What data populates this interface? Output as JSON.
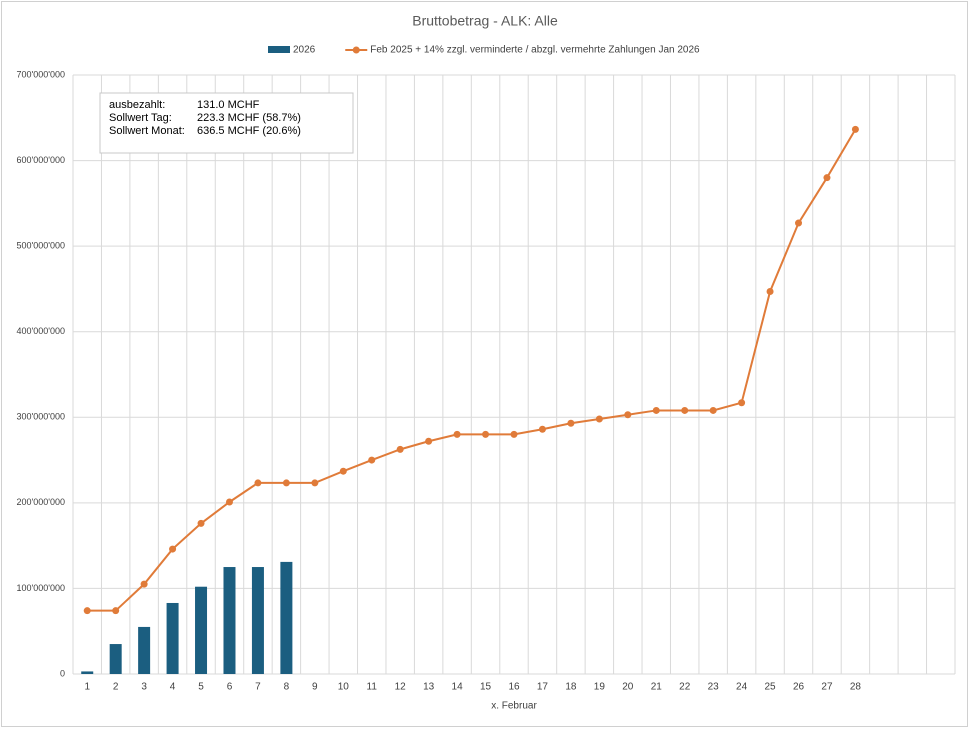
{
  "chart_data": {
    "type": "bar_line",
    "title": "Bruttobetrag - ALK: Alle",
    "x_label": "x. Februar",
    "categories": [
      "1",
      "2",
      "3",
      "4",
      "5",
      "6",
      "7",
      "8",
      "9",
      "10",
      "11",
      "12",
      "13",
      "14",
      "15",
      "16",
      "17",
      "18",
      "19",
      "20",
      "21",
      "22",
      "23",
      "24",
      "25",
      "26",
      "27",
      "28",
      null,
      null,
      null
    ],
    "series": [
      {
        "name": "2026",
        "type": "bar",
        "color": "#1b5e80",
        "values": [
          3000000,
          35000000,
          55000000,
          83000000,
          102000000,
          125000000,
          125000000,
          131000000,
          null,
          null,
          null,
          null,
          null,
          null,
          null,
          null,
          null,
          null,
          null,
          null,
          null,
          null,
          null,
          null,
          null,
          null,
          null,
          null,
          null,
          null,
          null
        ]
      },
      {
        "name": "Feb 2025 + 14% zzgl. verminderte / abzgl. vermehrte Zahlungen Jan 2026",
        "type": "line",
        "color": "#e07b39",
        "values": [
          74000000,
          74000000,
          105000000,
          146000000,
          176000000,
          201000000,
          223300000,
          223300000,
          223300000,
          237000000,
          250000000,
          262500000,
          272000000,
          280000000,
          280000000,
          280000000,
          286000000,
          293000000,
          298000000,
          303000000,
          308000000,
          308000000,
          308000000,
          317000000,
          447000000,
          527000000,
          580000000,
          636500000,
          null,
          null,
          null
        ]
      }
    ],
    "ylim": [
      0,
      700000000
    ],
    "yticks": [
      0,
      {
        "value": 100000000,
        "label": "100'000'000"
      },
      {
        "value": 200000000,
        "label": "200'000'000"
      },
      {
        "value": 300000000,
        "label": "300'000'000"
      },
      {
        "value": 400000000,
        "label": "400'000'000"
      },
      {
        "value": 500000000,
        "label": "500'000'000"
      },
      {
        "value": 600000000,
        "label": "600'000'000"
      },
      {
        "value": 700000000,
        "label": "700'000'000"
      }
    ],
    "grid": true,
    "legend": "top",
    "annotations": [
      [
        "ausbezahlt:",
        "131.0 MCHF"
      ],
      [
        "Sollwert Tag:",
        "223.3 MCHF (58.7%)"
      ],
      [
        "Sollwert Monat:",
        "636.5 MCHF (20.6%)"
      ]
    ]
  }
}
